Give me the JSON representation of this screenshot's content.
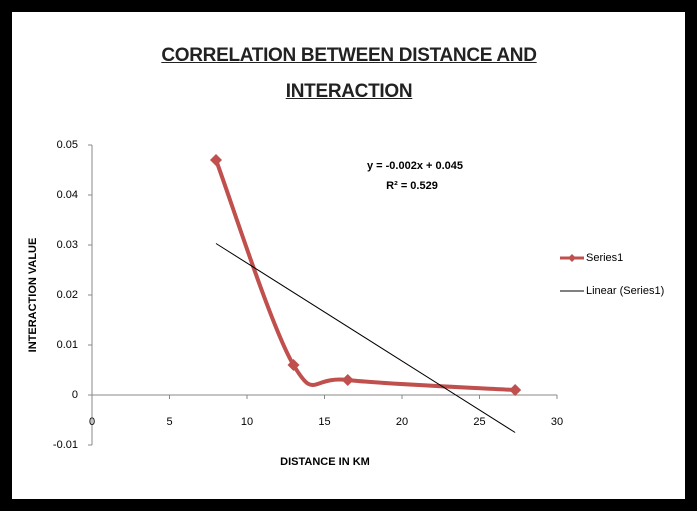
{
  "chart_data": {
    "type": "scatter",
    "title": "CORRELATION BETWEEN DISTANCE AND INTERACTION",
    "x_label": "DISTANCE IN KM",
    "y_label": "INTERACTION VALUE",
    "annotations": [
      "y = -0.002x + 0.045",
      "R² = 0.529"
    ],
    "xlim": [
      0,
      30
    ],
    "xticks": [
      0,
      5,
      10,
      15,
      20,
      25,
      30
    ],
    "ylim": [
      -0.01,
      0.05
    ],
    "yticks": [
      0.05,
      0.04,
      0.03,
      0.02,
      0.01,
      0,
      -0.01
    ],
    "legend": "right",
    "series": [
      {
        "name": "Series1",
        "color": "#c0504d",
        "smooth": true,
        "marker": "diamond",
        "x": [
          8,
          13,
          16.5,
          27.3
        ],
        "values": [
          0.047,
          0.006,
          0.003,
          0.001
        ]
      },
      {
        "name": "Linear (Series1)",
        "color": "#000000",
        "smooth": false,
        "x": [
          8,
          27.3
        ],
        "values": [
          0.0303,
          -0.0075
        ]
      }
    ]
  }
}
